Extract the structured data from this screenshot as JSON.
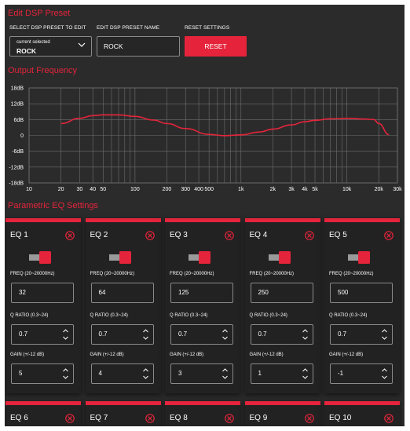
{
  "header": {
    "title": "Edit DSP Preset",
    "select_label": "SELECT DSP PRESET TO EDIT",
    "select_caption": "current selected",
    "select_value": "ROCK",
    "name_label": "EDIT DSP PRESET NAME",
    "name_value": "ROCK",
    "reset_label": "RESET SETTINGS",
    "reset_button": "RESET"
  },
  "output": {
    "title": "Output Frequency"
  },
  "parametric": {
    "title": "Parametric EQ Settings"
  },
  "labels": {
    "freq": "FREQ (20~20000Hz)",
    "q": "Q RATIO (0.3~24)",
    "gain": "GAIN (+/-12 dB)"
  },
  "eqs": [
    {
      "name": "EQ 1",
      "freq": "32",
      "q": "0.7",
      "gain": "5"
    },
    {
      "name": "EQ 2",
      "freq": "64",
      "q": "0.7",
      "gain": "4"
    },
    {
      "name": "EQ 3",
      "freq": "125",
      "q": "0.7",
      "gain": "3"
    },
    {
      "name": "EQ 4",
      "freq": "250",
      "q": "0.7",
      "gain": "1"
    },
    {
      "name": "EQ 5",
      "freq": "500",
      "q": "0.7",
      "gain": "-1"
    }
  ],
  "eqs_next": [
    {
      "name": "EQ 6"
    },
    {
      "name": "EQ 7"
    },
    {
      "name": "EQ 8"
    },
    {
      "name": "EQ 9"
    },
    {
      "name": "EQ 10"
    }
  ],
  "colors": {
    "accent": "#e5243b",
    "background": "#2b2b2b",
    "card": "#222222"
  },
  "chart_data": {
    "type": "line",
    "xscale": "log",
    "xlim": [
      10,
      30000
    ],
    "ylim": [
      -18,
      18
    ],
    "grid": true,
    "y_ticks": [
      "18dB",
      "12dB",
      "6dB",
      "0",
      "-6dB",
      "-12dB",
      "-18dB"
    ],
    "y_tick_values": [
      18,
      12,
      6,
      0,
      -6,
      -12,
      -18
    ],
    "x_ticks": [
      "10",
      "20",
      "30",
      "40",
      "50",
      "100",
      "200",
      "300",
      "400",
      "500",
      "1k",
      "2k",
      "3k",
      "4k",
      "5k",
      "10k",
      "20k",
      "30k"
    ],
    "x_tick_values": [
      10,
      20,
      30,
      40,
      50,
      100,
      200,
      300,
      400,
      500,
      1000,
      2000,
      3000,
      4000,
      5000,
      10000,
      20000,
      30000
    ],
    "series": [
      {
        "color": "#e5243b",
        "x": [
          20,
          30,
          40,
          50,
          70,
          100,
          150,
          200,
          300,
          500,
          700,
          1000,
          1500,
          2000,
          3000,
          4000,
          5000,
          7000,
          10000,
          15000,
          18000,
          20000,
          25000
        ],
        "y": [
          4.5,
          6.5,
          7.5,
          7.8,
          7.8,
          7.2,
          5.8,
          4.5,
          2.6,
          0.4,
          -0.1,
          0.2,
          1.3,
          2.4,
          4.0,
          5.2,
          5.7,
          6.3,
          6.5,
          6.2,
          6.0,
          4.5,
          0.3
        ]
      }
    ]
  }
}
